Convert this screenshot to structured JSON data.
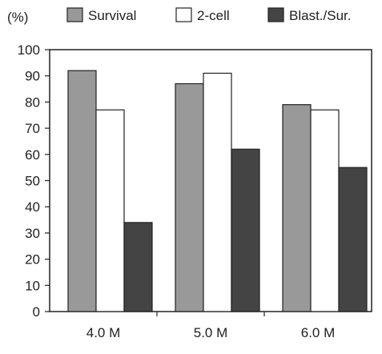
{
  "chart_data": {
    "type": "bar",
    "title": "",
    "xlabel": "",
    "ylabel": "(%)",
    "ylim": [
      0,
      100
    ],
    "yticks": [
      0,
      10,
      20,
      30,
      40,
      50,
      60,
      70,
      80,
      90,
      100
    ],
    "grid": false,
    "legend_position": "top",
    "categories": [
      "4.0 M",
      "5.0 M",
      "6.0 M"
    ],
    "series": [
      {
        "name": "Survival",
        "color": "#999999",
        "values": [
          92,
          87,
          79
        ]
      },
      {
        "name": "2-cell",
        "color": "#ffffff",
        "values": [
          77,
          91,
          77
        ]
      },
      {
        "name": "Blast./Sur.",
        "color": "#444444",
        "values": [
          34,
          62,
          55
        ]
      }
    ]
  }
}
